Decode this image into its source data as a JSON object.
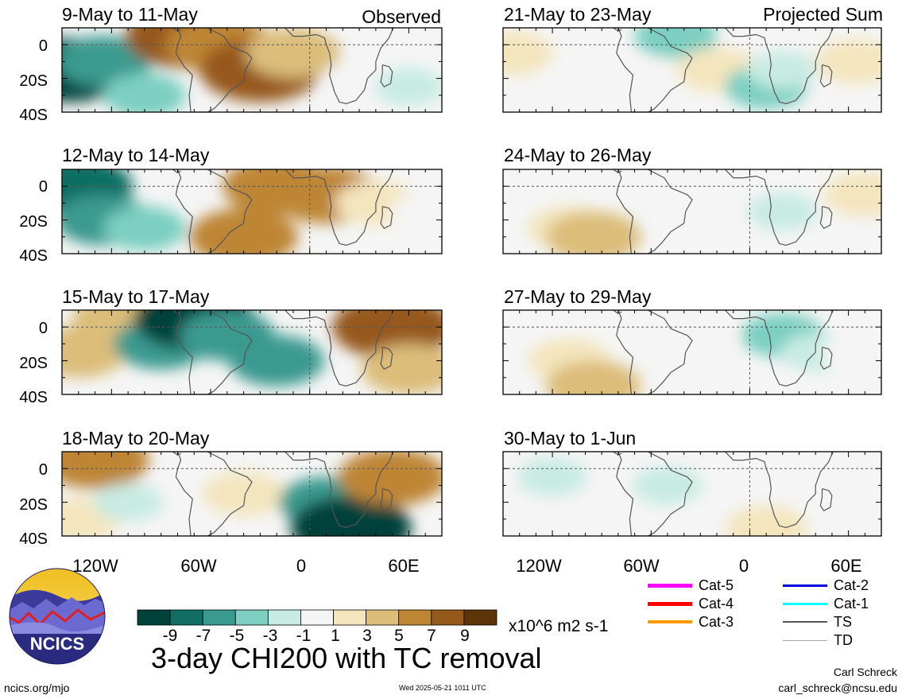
{
  "title": "3-day CHI200 with TC removal",
  "units": "x10^6 m2 s-1",
  "columns": {
    "left_label": "Observed",
    "right_label": "Projected Sum"
  },
  "panels_left": [
    {
      "title": "9-May to 11-May"
    },
    {
      "title": "12-May to 14-May"
    },
    {
      "title": "15-May to 17-May"
    },
    {
      "title": "18-May to 20-May"
    }
  ],
  "panels_right": [
    {
      "title": "21-May to 23-May"
    },
    {
      "title": "24-May to 26-May"
    },
    {
      "title": "27-May to 29-May"
    },
    {
      "title": "30-May to 1-Jun"
    }
  ],
  "y_ticks": [
    "0",
    "20S",
    "40S"
  ],
  "x_ticks": [
    "120W",
    "60W",
    "0",
    "60E"
  ],
  "colorbar": {
    "labels": [
      "-9",
      "-7",
      "-5",
      "-3",
      "-1",
      "1",
      "3",
      "5",
      "7",
      "9"
    ],
    "colors": [
      "#00423a",
      "#106e64",
      "#3a9a90",
      "#7ccfc1",
      "#c8ebe3",
      "#f5f5f5",
      "#f4e5bd",
      "#dcbd7a",
      "#be8535",
      "#96591c",
      "#5c3407"
    ]
  },
  "tc_legend": [
    {
      "label": "Cat-5",
      "color": "#ff00ff"
    },
    {
      "label": "Cat-2",
      "color": "#0000dd"
    },
    {
      "label": "Cat-4",
      "color": "#ff0000"
    },
    {
      "label": "Cat-1",
      "color": "#00ffff"
    },
    {
      "label": "Cat-3",
      "color": "#ff9900"
    },
    {
      "label": "TS",
      "color": "#555555"
    },
    {
      "label": "TD",
      "color": "#aaaaaa"
    }
  ],
  "logo": {
    "text": "NCICS"
  },
  "footer": {
    "url": "ncics.org/mjo",
    "timestamp": "Wed 2025-05-21 1011 UTC",
    "author": "Carl Schreck",
    "email": "carl_schreck@ncsu.edu"
  },
  "chart_data": [
    {
      "type": "heatmap",
      "title": "9-May to 11-May",
      "label": "Observed",
      "xlim": [
        -150,
        80
      ],
      "ylim": [
        -40,
        10
      ],
      "xlabel": "",
      "ylabel": "",
      "grid": false,
      "features": [
        {
          "lon": -145,
          "lat": -15,
          "value": -9
        },
        {
          "lon": -125,
          "lat": -10,
          "value": -5
        },
        {
          "lon": -100,
          "lat": -30,
          "value": -3
        },
        {
          "lon": -75,
          "lat": 5,
          "value": 9
        },
        {
          "lon": -55,
          "lat": 0,
          "value": 7
        },
        {
          "lon": -30,
          "lat": -15,
          "value": 9
        },
        {
          "lon": -10,
          "lat": -5,
          "value": 5
        },
        {
          "lon": 30,
          "lat": -20,
          "value": 1
        },
        {
          "lon": 60,
          "lat": -25,
          "value": -1
        }
      ]
    },
    {
      "type": "heatmap",
      "title": "12-May to 14-May",
      "label": "Observed",
      "xlim": [
        -150,
        80
      ],
      "ylim": [
        -40,
        10
      ],
      "features": [
        {
          "lon": -140,
          "lat": 0,
          "value": -7
        },
        {
          "lon": -125,
          "lat": -20,
          "value": -5
        },
        {
          "lon": -100,
          "lat": -25,
          "value": -3
        },
        {
          "lon": -40,
          "lat": -30,
          "value": 7
        },
        {
          "lon": -20,
          "lat": 0,
          "value": 7
        },
        {
          "lon": 10,
          "lat": -5,
          "value": 7
        },
        {
          "lon": 40,
          "lat": -10,
          "value": 3
        },
        {
          "lon": 70,
          "lat": -15,
          "value": 1
        }
      ]
    },
    {
      "type": "heatmap",
      "title": "15-May to 17-May",
      "label": "Observed",
      "xlim": [
        -150,
        80
      ],
      "ylim": [
        -40,
        10
      ],
      "features": [
        {
          "lon": -140,
          "lat": -15,
          "value": 5
        },
        {
          "lon": -115,
          "lat": 5,
          "value": 5
        },
        {
          "lon": -90,
          "lat": -10,
          "value": -5
        },
        {
          "lon": -70,
          "lat": 5,
          "value": -9
        },
        {
          "lon": -50,
          "lat": -5,
          "value": -5
        },
        {
          "lon": -20,
          "lat": -20,
          "value": -5
        },
        {
          "lon": 50,
          "lat": 0,
          "value": 9
        },
        {
          "lon": 60,
          "lat": -25,
          "value": 5
        }
      ]
    },
    {
      "type": "heatmap",
      "title": "18-May to 20-May",
      "label": "Observed",
      "xlim": [
        -150,
        80
      ],
      "ylim": [
        -40,
        10
      ],
      "features": [
        {
          "lon": -130,
          "lat": 5,
          "value": 7
        },
        {
          "lon": -140,
          "lat": -30,
          "value": 3
        },
        {
          "lon": -110,
          "lat": -20,
          "value": -1
        },
        {
          "lon": -40,
          "lat": -15,
          "value": 3
        },
        {
          "lon": 10,
          "lat": -20,
          "value": -5
        },
        {
          "lon": 25,
          "lat": -35,
          "value": -9
        },
        {
          "lon": 50,
          "lat": -5,
          "value": 7
        }
      ]
    },
    {
      "type": "heatmap",
      "title": "21-May to 23-May",
      "label": "Projected Sum",
      "xlim": [
        -150,
        80
      ],
      "ylim": [
        -40,
        10
      ],
      "features": [
        {
          "lon": -145,
          "lat": -5,
          "value": 3
        },
        {
          "lon": -45,
          "lat": 5,
          "value": -3
        },
        {
          "lon": -60,
          "lat": -20,
          "value": 1
        },
        {
          "lon": -20,
          "lat": -15,
          "value": 3
        },
        {
          "lon": 10,
          "lat": -25,
          "value": -3
        },
        {
          "lon": 20,
          "lat": -15,
          "value": -1
        },
        {
          "lon": 65,
          "lat": -10,
          "value": 3
        }
      ]
    },
    {
      "type": "heatmap",
      "title": "24-May to 26-May",
      "label": "Projected Sum",
      "xlim": [
        -150,
        80
      ],
      "ylim": [
        -40,
        10
      ],
      "features": [
        {
          "lon": -110,
          "lat": -25,
          "value": 3
        },
        {
          "lon": -95,
          "lat": -30,
          "value": 5
        },
        {
          "lon": -40,
          "lat": -15,
          "value": 1
        },
        {
          "lon": 20,
          "lat": -15,
          "value": -1
        },
        {
          "lon": 70,
          "lat": -5,
          "value": 3
        }
      ]
    },
    {
      "type": "heatmap",
      "title": "27-May to 29-May",
      "label": "Projected Sum",
      "xlim": [
        -150,
        80
      ],
      "ylim": [
        -40,
        10
      ],
      "features": [
        {
          "lon": -110,
          "lat": -20,
          "value": 3
        },
        {
          "lon": -95,
          "lat": -35,
          "value": 5
        },
        {
          "lon": -30,
          "lat": -10,
          "value": 1
        },
        {
          "lon": 20,
          "lat": -5,
          "value": -3
        },
        {
          "lon": 40,
          "lat": -15,
          "value": -1
        },
        {
          "lon": 65,
          "lat": -15,
          "value": 1
        }
      ]
    },
    {
      "type": "heatmap",
      "title": "30-May to 1-Jun",
      "label": "Projected Sum",
      "xlim": [
        -150,
        80
      ],
      "ylim": [
        -40,
        10
      ],
      "features": [
        {
          "lon": -120,
          "lat": -5,
          "value": -1
        },
        {
          "lon": -50,
          "lat": -10,
          "value": -1
        },
        {
          "lon": -10,
          "lat": -20,
          "value": 1
        },
        {
          "lon": 10,
          "lat": -35,
          "value": 3
        },
        {
          "lon": 40,
          "lat": -10,
          "value": 1
        }
      ]
    }
  ]
}
